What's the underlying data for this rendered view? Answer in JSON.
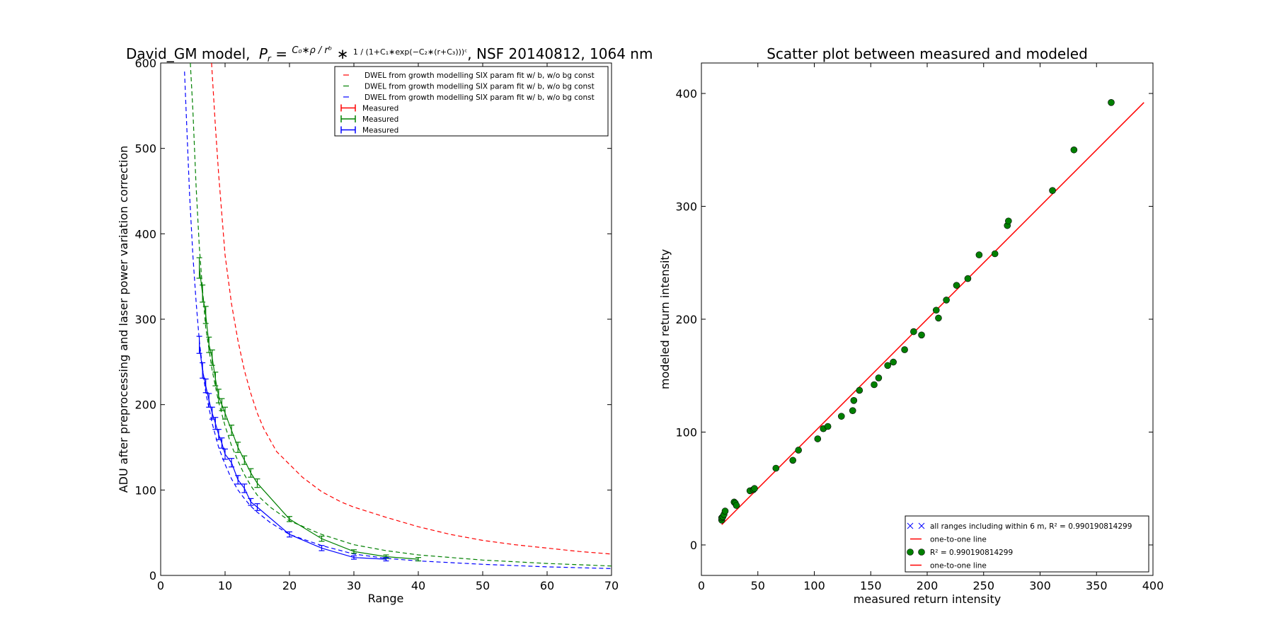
{
  "figure": {
    "background": "#ffffff"
  },
  "chart_data": [
    {
      "type": "line",
      "title_prefix": "David_GM model,",
      "title_formula": "Pr = (C0*ρ / r^b) * 1 / (1 + C1*exp(−C2*(r + C3)))^C",
      "title_suffix": ", NSF 20140812, 1064 nm",
      "xlabel": "Range",
      "ylabel": "ADU after preprocessing and laser power variation correction",
      "xlim": [
        0,
        70
      ],
      "ylim": [
        0,
        600
      ],
      "xticks": [
        0,
        10,
        20,
        30,
        40,
        50,
        60,
        70
      ],
      "yticks": [
        0,
        100,
        200,
        300,
        400,
        500,
        600
      ],
      "grid": false,
      "legend_position": "top-right",
      "legend": [
        {
          "label": "DWEL from growth modelling SIX param fit w/ b, w/o bg const",
          "color": "#ff0000",
          "style": "dashed"
        },
        {
          "label": "DWEL from growth modelling SIX param fit w/ b, w/o bg const",
          "color": "#008000",
          "style": "dashed"
        },
        {
          "label": "DWEL from growth modelling SIX param fit w/ b, w/o bg const",
          "color": "#0000ff",
          "style": "dashed"
        },
        {
          "label": "Measured",
          "color": "#ff0000",
          "style": "errorbar"
        },
        {
          "label": "Measured",
          "color": "#008000",
          "style": "errorbar"
        },
        {
          "label": "Measured",
          "color": "#0000ff",
          "style": "errorbar"
        }
      ],
      "series": [
        {
          "color": "#ff0000",
          "style": "dashed",
          "x": [
            7.9,
            8.5,
            9,
            10,
            11,
            12,
            13,
            14,
            15,
            16,
            18,
            20,
            22,
            25,
            28,
            30,
            35,
            40,
            45,
            50,
            55,
            60,
            65,
            70
          ],
          "y": [
            600,
            525,
            470,
            375,
            318,
            275,
            240,
            213,
            190,
            172,
            145,
            130,
            115,
            98,
            86,
            80,
            68,
            57,
            48,
            41,
            36,
            32,
            28,
            25
          ]
        },
        {
          "color": "#008000",
          "style": "dashed",
          "x": [
            4.6,
            5,
            5.5,
            6,
            6.5,
            7,
            8,
            9,
            10,
            11,
            12,
            13,
            14,
            15,
            17,
            20,
            25,
            30,
            35,
            40,
            50,
            60,
            70
          ],
          "y": [
            600,
            545,
            455,
            385,
            335,
            290,
            240,
            203,
            175,
            152,
            134,
            118,
            105,
            94,
            80,
            64,
            48,
            36,
            29,
            24,
            18,
            14,
            11
          ]
        },
        {
          "color": "#0000ff",
          "style": "dashed",
          "x": [
            3.7,
            4,
            4.5,
            5,
            5.5,
            6,
            6.5,
            7,
            8,
            9,
            10,
            11,
            12,
            13,
            14,
            15,
            17,
            20,
            25,
            30,
            35,
            40,
            50,
            60,
            70
          ],
          "y": [
            590,
            535,
            445,
            375,
            320,
            275,
            243,
            214,
            178,
            150,
            130,
            113,
            100,
            90,
            81,
            74,
            62,
            48,
            35,
            25,
            20,
            17,
            13,
            10,
            8
          ]
        },
        {
          "color": "#008000",
          "style": "errorbar",
          "name": "Measured",
          "x": [
            6,
            6.5,
            7,
            7.5,
            8,
            8.5,
            9,
            9.5,
            10,
            11,
            12,
            13,
            14,
            15,
            20,
            25,
            30,
            35,
            40
          ],
          "y": [
            360,
            330,
            305,
            270,
            255,
            230,
            210,
            200,
            190,
            170,
            150,
            135,
            120,
            108,
            66,
            43,
            28,
            22,
            19
          ],
          "err": [
            12,
            10,
            10,
            9,
            9,
            8,
            8,
            7,
            7,
            6,
            6,
            5,
            5,
            5,
            3,
            3,
            2,
            2,
            2
          ]
        },
        {
          "color": "#0000ff",
          "style": "errorbar",
          "name": "Measured",
          "x": [
            6,
            6.5,
            7,
            7.5,
            8,
            8.5,
            9,
            9.5,
            10,
            11,
            12,
            13,
            14,
            15,
            20,
            25,
            30,
            35
          ],
          "y": [
            270,
            240,
            222,
            205,
            190,
            178,
            165,
            155,
            142,
            132,
            112,
            102,
            86,
            80,
            48,
            32,
            21,
            19
          ],
          "err": [
            10,
            9,
            8,
            8,
            7,
            7,
            6,
            6,
            6,
            5,
            5,
            5,
            4,
            4,
            3,
            3,
            2,
            2
          ]
        }
      ]
    },
    {
      "type": "scatter",
      "title": "Scatter plot between measured and modeled",
      "xlabel": "measured return intensity",
      "ylabel": "modeled return intensity",
      "xlim": [
        0,
        400
      ],
      "ylim": [
        -27,
        427
      ],
      "xticks": [
        0,
        50,
        100,
        150,
        200,
        250,
        300,
        350,
        400
      ],
      "yticks": [
        0,
        100,
        200,
        300,
        400
      ],
      "grid": false,
      "legend_position": "bottom-right",
      "legend": [
        {
          "label": "all ranges including within 6 m, R² = 0.990190814299",
          "color": "#0000ff",
          "style": "x-marker"
        },
        {
          "label": "one-to-one line",
          "color": "#ff0000",
          "style": "line"
        },
        {
          "label": "R² = 0.990190814299",
          "color": "#008000",
          "style": "circle-marker"
        },
        {
          "label": "one-to-one line",
          "color": "#ff0000",
          "style": "line"
        }
      ],
      "one_to_one": {
        "x": [
          18,
          392
        ],
        "y": [
          18,
          392
        ],
        "color": "#ff0000"
      },
      "points": {
        "color": "#008000",
        "x": [
          18,
          18,
          19,
          20,
          21,
          29,
          30,
          31,
          43,
          46,
          47,
          66,
          81,
          86,
          103,
          108,
          112,
          124,
          134,
          135,
          140,
          153,
          157,
          165,
          170,
          180,
          188,
          195,
          208,
          210,
          217,
          226,
          236,
          246,
          260,
          271,
          272,
          311,
          330,
          363
        ],
        "y": [
          22,
          24,
          25,
          27,
          30,
          38,
          37,
          35,
          48,
          49,
          50,
          68,
          75,
          84,
          94,
          103,
          105,
          114,
          119,
          128,
          137,
          142,
          148,
          159,
          162,
          173,
          189,
          186,
          208,
          201,
          217,
          230,
          236,
          257,
          258,
          283,
          287,
          314,
          350,
          392
        ]
      }
    }
  ]
}
